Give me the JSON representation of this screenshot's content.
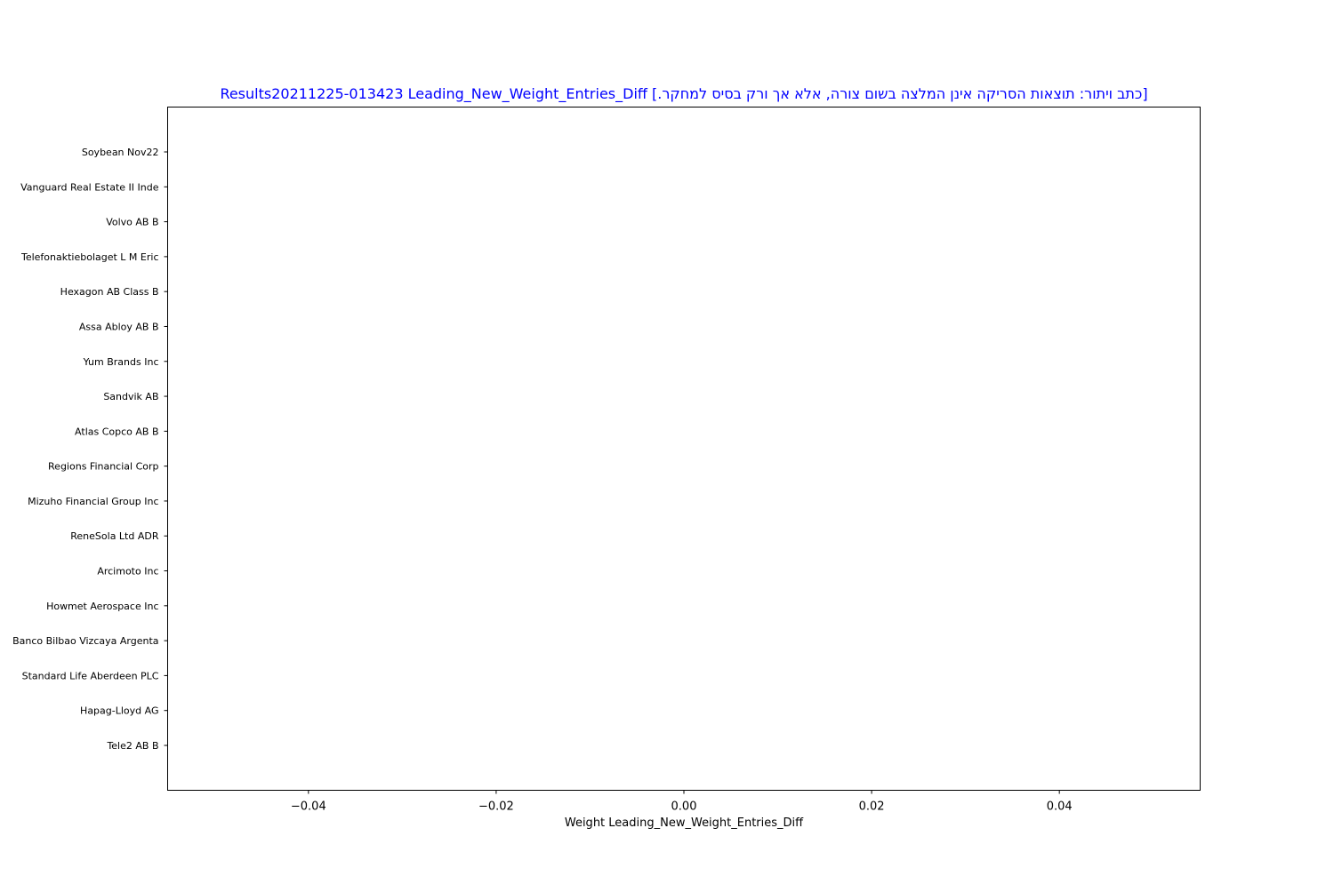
{
  "chart_data": {
    "type": "bar",
    "orientation": "horizontal",
    "title": "Results20211225-013423 Leading_New_Weight_Entries_Diff [.כתב ויתור: תוצאות הסריקה אינן המלצה בשום צורה, אלא אך ורק בסיס למחקר]",
    "title_color": "#0000ff",
    "xlabel": "Weight Leading_New_Weight_Entries_Diff",
    "ylabel": "",
    "categories": [
      "Soybean Nov22",
      "Vanguard Real Estate II Inde",
      "Volvo AB B",
      "Telefonaktiebolaget L M Eric",
      "Hexagon AB Class B",
      "Assa Abloy AB B",
      "Yum Brands Inc",
      "Sandvik AB",
      "Atlas Copco AB B",
      "Regions Financial Corp",
      "Mizuho Financial Group Inc",
      "ReneSola Ltd ADR",
      "Arcimoto Inc",
      "Howmet Aerospace Inc",
      "Banco Bilbao Vizcaya Argenta",
      "Standard Life Aberdeen PLC",
      "Hapag-Lloyd AG",
      "Tele2 AB B"
    ],
    "values": [
      0,
      0,
      0,
      0,
      0,
      0,
      0,
      0,
      0,
      0,
      0,
      0,
      0,
      0,
      0,
      0,
      0,
      0
    ],
    "xlim": [
      -0.055,
      0.055
    ],
    "xticks": [
      -0.04,
      -0.02,
      0.0,
      0.02,
      0.04
    ],
    "xtick_labels": [
      "−0.04",
      "−0.02",
      "0.00",
      "0.02",
      "0.04"
    ],
    "grid": false,
    "legend": "none"
  }
}
